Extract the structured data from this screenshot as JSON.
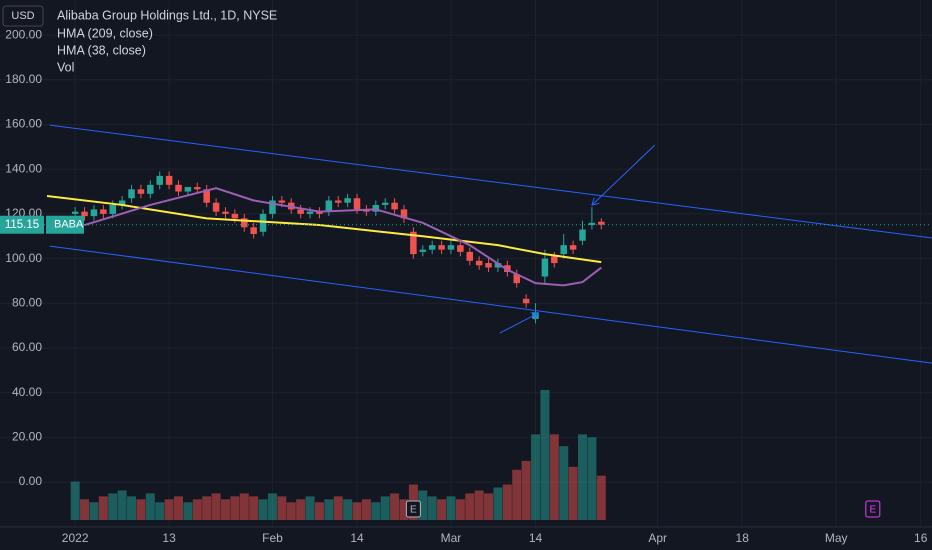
{
  "chart_data": {
    "type": "candlestick",
    "title": "Alibaba Group Holdings Ltd., 1D, NYSE",
    "currency": "USD",
    "symbol": "BABA",
    "last_price": 115.15,
    "last_price_label": "115.15",
    "indicators": [
      "HMA (209, close)",
      "HMA (38, close)",
      "Vol"
    ],
    "colors": {
      "up": "#26a69a",
      "down": "#ef5350",
      "background": "#131722",
      "trendline": "#2962ff"
    },
    "x": [
      -1,
      0,
      1,
      2,
      3,
      4,
      5,
      6,
      7,
      8,
      9,
      10,
      11,
      12,
      13,
      14,
      15,
      16,
      17,
      18,
      19,
      20,
      21,
      22,
      23,
      24,
      25,
      26,
      27,
      28,
      29,
      30,
      31,
      32,
      33,
      34,
      35,
      36,
      37,
      38,
      39,
      40,
      41,
      42,
      43,
      44,
      45,
      46,
      47,
      48,
      49,
      50,
      51,
      52,
      53,
      54,
      55
    ],
    "open": [
      120,
      121,
      119,
      122,
      120,
      124,
      127,
      131,
      129,
      133,
      137,
      133,
      130,
      132,
      131,
      125,
      121,
      120,
      118,
      114,
      112,
      120,
      126,
      125,
      122,
      120,
      121,
      121,
      126,
      125,
      127,
      122,
      121,
      124,
      125,
      122,
      112,
      103,
      104,
      106,
      104,
      106,
      103,
      99,
      98,
      96,
      97,
      93,
      82,
      73,
      92,
      101,
      102,
      106,
      108,
      115,
      116.5
    ],
    "high": [
      123,
      123,
      124,
      124,
      126,
      128,
      133,
      133,
      135,
      139,
      139,
      135,
      132,
      134,
      133,
      127,
      123,
      122,
      120,
      116,
      122,
      128,
      128,
      127,
      124,
      123,
      123,
      128,
      128,
      129,
      129,
      124,
      126,
      127,
      127,
      124,
      114,
      106,
      108,
      108,
      108,
      108,
      105,
      101,
      100,
      100,
      99,
      95,
      84,
      80,
      104,
      103,
      111,
      108,
      117,
      123,
      118
    ],
    "low": [
      118,
      117,
      117,
      118,
      118,
      122,
      125,
      127,
      127,
      131,
      131,
      128,
      128,
      129,
      123,
      119,
      118,
      116,
      112,
      109,
      110,
      118,
      123,
      120,
      118,
      118,
      118,
      119,
      123,
      123,
      120,
      119,
      119,
      122,
      120,
      116,
      100,
      101,
      102,
      102,
      102,
      101,
      97,
      95,
      94,
      94,
      92,
      87,
      78,
      71,
      89,
      96,
      100,
      102,
      106,
      113,
      113
    ],
    "close": [
      121,
      119,
      122,
      120,
      124,
      126,
      131,
      129,
      133,
      137,
      133,
      130,
      132,
      131,
      125,
      121,
      120,
      118,
      114,
      111,
      120,
      126,
      125,
      122,
      120,
      121,
      120,
      126,
      125,
      127,
      122,
      121,
      124,
      125,
      122,
      118,
      102,
      104,
      106,
      104,
      106,
      103,
      99,
      97,
      96,
      98,
      94,
      89,
      80,
      76,
      100,
      98,
      106,
      104,
      113,
      116,
      115.15
    ],
    "volume": [
      13,
      7,
      6,
      8,
      9,
      10,
      8,
      7,
      9,
      6,
      7,
      8,
      6,
      7,
      8,
      9,
      7,
      8,
      9,
      8,
      7,
      9,
      8,
      6,
      7,
      8,
      6,
      7,
      8,
      7,
      6,
      7,
      6,
      8,
      9,
      7,
      12,
      10,
      8,
      7,
      8,
      7,
      9,
      10,
      9,
      11,
      12,
      17,
      20,
      29,
      44,
      29,
      25,
      18,
      29,
      28,
      15
    ],
    "series": [
      {
        "name": "HMA (209, close)",
        "color": "#ffeb3b",
        "x": [
          -4,
          4,
          13,
          25,
          36,
          44,
          49,
          55
        ],
        "values": [
          128,
          124,
          118,
          115,
          110,
          106,
          102,
          98.4
        ]
      },
      {
        "name": "HMA (38, close)",
        "color": "#9c5fb5",
        "x": [
          0,
          7,
          14,
          18,
          25,
          31,
          36,
          41,
          45,
          48,
          51,
          53,
          55
        ],
        "values": [
          115,
          124,
          131.5,
          126,
          121,
          122,
          116,
          106,
          95,
          89,
          88,
          89.5,
          96
        ]
      }
    ],
    "trendlines": [
      {
        "x": [
          -3.7,
          90.2
        ],
        "values": [
          159.7,
          109.2
        ]
      },
      {
        "x": [
          -3.7,
          90.2
        ],
        "values": [
          105.6,
          53.2
        ]
      }
    ],
    "arrows": [
      {
        "x": [
          44.2,
          48.3
        ],
        "values": [
          66.7,
          75.6
        ]
      },
      {
        "x": [
          60.7,
          54
        ],
        "values": [
          150.8,
          123.9
        ]
      }
    ],
    "earnings_markers": [
      {
        "x": 35,
        "label": "E",
        "color": "#b2b5be"
      },
      {
        "x": 83.9,
        "label": "E",
        "color": "#e040fb"
      }
    ],
    "xlim": [
      -9,
      90.2
    ],
    "ylim": [
      -20.1,
      215.7
    ],
    "xticks": [
      {
        "value": -1,
        "label": "2022"
      },
      {
        "value": 9,
        "label": "13"
      },
      {
        "value": 20,
        "label": "Feb"
      },
      {
        "value": 29,
        "label": "14"
      },
      {
        "value": 39,
        "label": "Mar"
      },
      {
        "value": 48,
        "label": "14"
      },
      {
        "value": 61,
        "label": "Apr"
      },
      {
        "value": 70,
        "label": "18"
      },
      {
        "value": 80,
        "label": "May"
      },
      {
        "value": 89,
        "label": "16"
      }
    ],
    "yticks": [
      {
        "value": 0,
        "label": "0.00"
      },
      {
        "value": 20,
        "label": "20.00"
      },
      {
        "value": 40,
        "label": "40.00"
      },
      {
        "value": 60,
        "label": "60.00"
      },
      {
        "value": 80,
        "label": "80.00"
      },
      {
        "value": 100,
        "label": "100.00"
      },
      {
        "value": 120,
        "label": "120.00"
      },
      {
        "value": 140,
        "label": "140.00"
      },
      {
        "value": 160,
        "label": "160.00"
      },
      {
        "value": 180,
        "label": "180.00"
      },
      {
        "value": 200,
        "label": "200.00"
      }
    ],
    "grid": true
  }
}
